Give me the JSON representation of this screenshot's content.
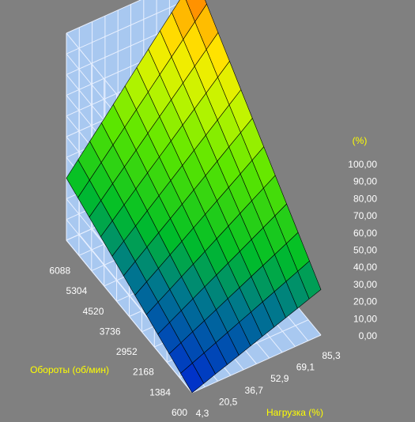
{
  "chart_data": {
    "type": "surface",
    "x_axis": {
      "label": "Нагрузка (%)",
      "ticks": [
        "4,3",
        "20,5",
        "36,7",
        "52,9",
        "69,1",
        "85,3"
      ],
      "range": [
        4.3,
        85.3
      ]
    },
    "y_axis": {
      "label": "Обороты (об/мин)",
      "ticks": [
        "600",
        "1384",
        "2168",
        "2952",
        "3736",
        "4520",
        "5304",
        "6088"
      ],
      "range": [
        600,
        6088
      ]
    },
    "z_axis": {
      "label": "(%)",
      "ticks": [
        "0,00",
        "10,00",
        "20,00",
        "30,00",
        "40,00",
        "50,00",
        "60,00",
        "70,00",
        "80,00",
        "90,00",
        "100,00"
      ],
      "range": [
        0,
        100
      ]
    },
    "surface": {
      "description_values": "percent load vs rpm",
      "corner_values": {
        "load_4.3_rpm_600": 0,
        "load_85.3_rpm_600": 22,
        "load_4.3_rpm_6088": 30,
        "load_85.3_rpm_6088": 100
      },
      "grid_cols": 11,
      "grid_rows": 11
    },
    "colors": {
      "background": "#808080",
      "walls": "#a8c8f0",
      "grid": "#e8f0ff",
      "mesh": "#000000",
      "tick_text": "#ffffff",
      "axis_title": "#ffff00"
    },
    "grid": true
  }
}
